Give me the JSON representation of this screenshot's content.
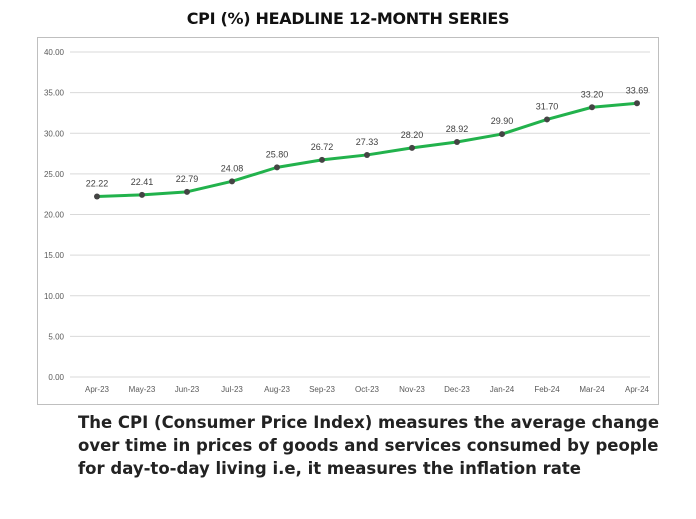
{
  "chart_data": {
    "type": "line",
    "title": "CPI (%)  HEADLINE 12-MONTH SERIES",
    "categories": [
      "Apr-23",
      "May-23",
      "Jun-23",
      "Jul-23",
      "Aug-23",
      "Sep-23",
      "Oct-23",
      "Nov-23",
      "Dec-23",
      "Jan-24",
      "Feb-24",
      "Mar-24",
      "Apr-24"
    ],
    "values": [
      22.22,
      22.41,
      22.79,
      24.08,
      25.8,
      26.72,
      27.33,
      28.2,
      28.92,
      29.9,
      31.7,
      33.2,
      33.69
    ],
    "data_labels": [
      "22.22",
      "22.41",
      "22.79",
      "24.08",
      "25.80",
      "26.72",
      "27.33",
      "28.20",
      "28.92",
      "29.90",
      "31.70",
      "33.20",
      "33.69"
    ],
    "yticks": [
      "0.00",
      "5.00",
      "10.00",
      "15.00",
      "20.00",
      "25.00",
      "30.00",
      "35.00",
      "40.00"
    ],
    "ylim": [
      0,
      40
    ],
    "grid": true,
    "line_color": "#22b24c",
    "marker_color": "#444444"
  },
  "caption": "The CPI (Consumer Price Index) measures the average change over time in prices of goods and services consumed by people for day-to-day living i.e, it measures the inflation rate"
}
